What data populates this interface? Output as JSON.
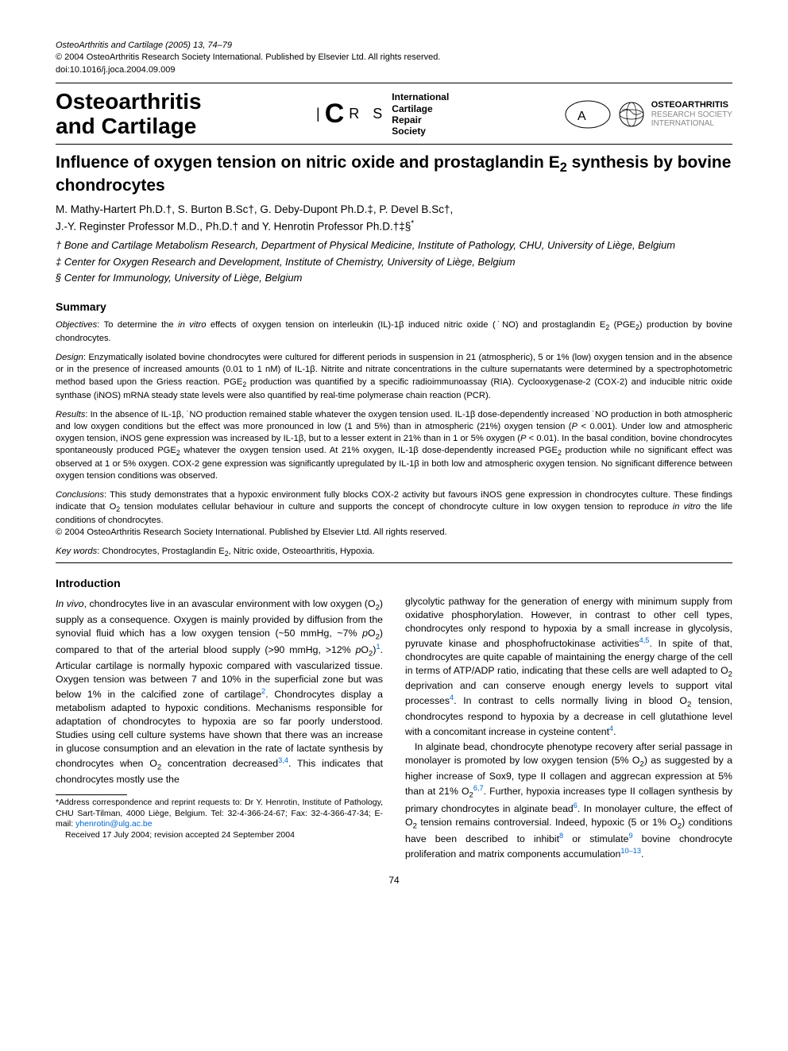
{
  "meta": {
    "citation": "OsteoArthritis and Cartilage (2005) 13, 74–79",
    "copyright": "© 2004 OsteoArthritis Research Society International. Published by Elsevier Ltd. All rights reserved.",
    "doi": "doi:10.1016/j.joca.2004.09.009"
  },
  "masthead": {
    "journal": "Osteoarthritis and Cartilage",
    "icrs_letters": "I C R S",
    "icrs_text": "International Cartilage Repair Society",
    "oars_top": "OSTEOARTHRITIS",
    "oars_mid": "RESEARCH SOCIETY",
    "oars_bot": "INTERNATIONAL"
  },
  "title_html": "Influence of oxygen tension on nitric oxide and prostaglandin E<sub>2</sub> synthesis by bovine chondrocytes",
  "authors_html": "M. Mathy-Hartert Ph.D.†, S. Burton B.Sc†, G. Deby-Dupont Ph.D.‡, P. Devel B.Sc†,<br>J.-Y. Reginster Professor M.D., Ph.D.† and Y. Henrotin Professor Ph.D.†‡§<sup class=\"blk\">*</sup>",
  "affiliations": [
    "† Bone and Cartilage Metabolism Research, Department of Physical Medicine, Institute of Pathology, CHU, University of Liège, Belgium",
    "‡ Center for Oxygen Research and Development, Institute of Chemistry, University of Liège, Belgium",
    "§ Center for Immunology, University of Liège, Belgium"
  ],
  "summary_label": "Summary",
  "abstract": {
    "objectives_label": "Objectives",
    "objectives_html": ": To determine the <i>in vitro</i> effects of oxygen tension on interleukin (IL)-1β induced nitric oxide (˙NO) and prostaglandin E<sub>2</sub> (PGE<sub>2</sub>) production by bovine chondrocytes.",
    "design_label": "Design",
    "design_html": ": Enzymatically isolated bovine chondrocytes were cultured for different periods in suspension in 21 (atmospheric), 5 or 1% (low) oxygen tension and in the absence or in the presence of increased amounts (0.01 to 1 nM) of IL-1β. Nitrite and nitrate concentrations in the culture supernatants were determined by a spectrophotometric method based upon the Griess reaction. PGE<sub>2</sub> production was quantified by a specific radioimmunoassay (RIA). Cyclooxygenase-2 (COX-2) and inducible nitric oxide synthase (iNOS) mRNA steady state levels were also quantified by real-time polymerase chain reaction (PCR).",
    "results_label": "Results",
    "results_html": ": In the absence of IL-1β, ˙NO production remained stable whatever the oxygen tension used. IL-1β dose-dependently increased ˙NO production in both atmospheric and low oxygen conditions but the effect was more pronounced in low (1 and 5%) than in atmospheric (21%) oxygen tension (<i>P</i> &lt; 0.001). Under low and atmospheric oxygen tension, iNOS gene expression was increased by IL-1β, but to a lesser extent in 21% than in 1 or 5% oxygen (<i>P</i> &lt; 0.01). In the basal condition, bovine chondrocytes spontaneously produced PGE<sub>2</sub> whatever the oxygen tension used. At 21% oxygen, IL-1β dose-dependently increased PGE<sub>2</sub> production while no significant effect was observed at 1 or 5% oxygen. COX-2 gene expression was significantly upregulated by IL-1β in both low and atmospheric oxygen tension. No significant difference between oxygen tension conditions was observed.",
    "conclusions_label": "Conclusions",
    "conclusions_html": ": This study demonstrates that a hypoxic environment fully blocks COX-2 activity but favours iNOS gene expression in chondrocytes culture. These findings indicate that O<sub>2</sub> tension modulates cellular behaviour in culture and supports the concept of chondrocyte culture in low oxygen tension to reproduce <i>in vitro</i> the life conditions of chondrocytes.",
    "end_copyright": "© 2004 OsteoArthritis Research Society International. Published by Elsevier Ltd. All rights reserved."
  },
  "keywords_label": "Key words",
  "keywords_html": ": Chondrocytes, Prostaglandin E<sub>2</sub>, Nitric oxide, Osteoarthritis, Hypoxia.",
  "intro_label": "Introduction",
  "intro_col1_html": "<i>In vivo</i>, chondrocytes live in an avascular environment with low oxygen (O<sub>2</sub>) supply as a consequence. Oxygen is mainly provided by diffusion from the synovial fluid which has a low oxygen tension (~50 mmHg, ~7% <i>p</i>O<sub>2</sub>) compared to that of the arterial blood supply (&gt;90 mmHg, &gt;12% <i>p</i>O<sub>2</sub>)<sup>1</sup>. Articular cartilage is normally hypoxic compared with vascularized tissue. Oxygen tension was between 7 and 10% in the superficial zone but was below 1% in the calcified zone of cartilage<sup>2</sup>. Chondrocytes display a metabolism adapted to hypoxic conditions. Mechanisms responsible for adaptation of chondrocytes to hypoxia are so far poorly understood. Studies using cell culture systems have shown that there was an increase in glucose consumption and an elevation in the rate of lactate synthesis by chondrocytes when O<sub>2</sub> concentration decreased<sup>3,4</sup>. This indicates that chondrocytes mostly use the",
  "intro_col2_p1_html": "glycolytic pathway for the generation of energy with minimum supply from oxidative phosphorylation. However, in contrast to other cell types, chondrocytes only respond to hypoxia by a small increase in glycolysis, pyruvate kinase and phosphofructokinase activities<sup>4,5</sup>. In spite of that, chondrocytes are quite capable of maintaining the energy charge of the cell in terms of ATP/ADP ratio, indicating that these cells are well adapted to O<sub>2</sub> deprivation and can conserve enough energy levels to support vital processes<sup>4</sup>. In contrast to cells normally living in blood O<sub>2</sub> tension, chondrocytes respond to hypoxia by a decrease in cell glutathione level with a concomitant increase in cysteine content<sup>4</sup>.",
  "intro_col2_p2_html": "In alginate bead, chondrocyte phenotype recovery after serial passage in monolayer is promoted by low oxygen tension (5% O<sub>2</sub>) as suggested by a higher increase of Sox9, type II collagen and aggrecan expression at 5% than at 21% O<sub>2</sub><sup>6,7</sup>. Further, hypoxia increases type II collagen synthesis by primary chondrocytes in alginate bead<sup>6</sup>. In monolayer culture, the effect of O<sub>2</sub> tension remains controversial. Indeed, hypoxic (5 or 1% O<sub>2</sub>) conditions have been described to inhibit<sup>8</sup> or stimulate<sup>9</sup> bovine chondrocyte proliferation and matrix components accumulation<sup>10–13</sup>.",
  "footnote": {
    "text_html": "*Address correspondence and reprint requests to: Dr Y. Henrotin, Institute of Pathology, CHU Sart-Tilman, 4000 Liège, Belgium. Tel: 32-4-366-24-67; Fax: 32-4-366-47-34; E-mail: <a>yhenrotin@ulg.ac.be</a>",
    "received": "Received 17 July 2004; revision accepted 24 September 2004"
  },
  "page_number": "74"
}
